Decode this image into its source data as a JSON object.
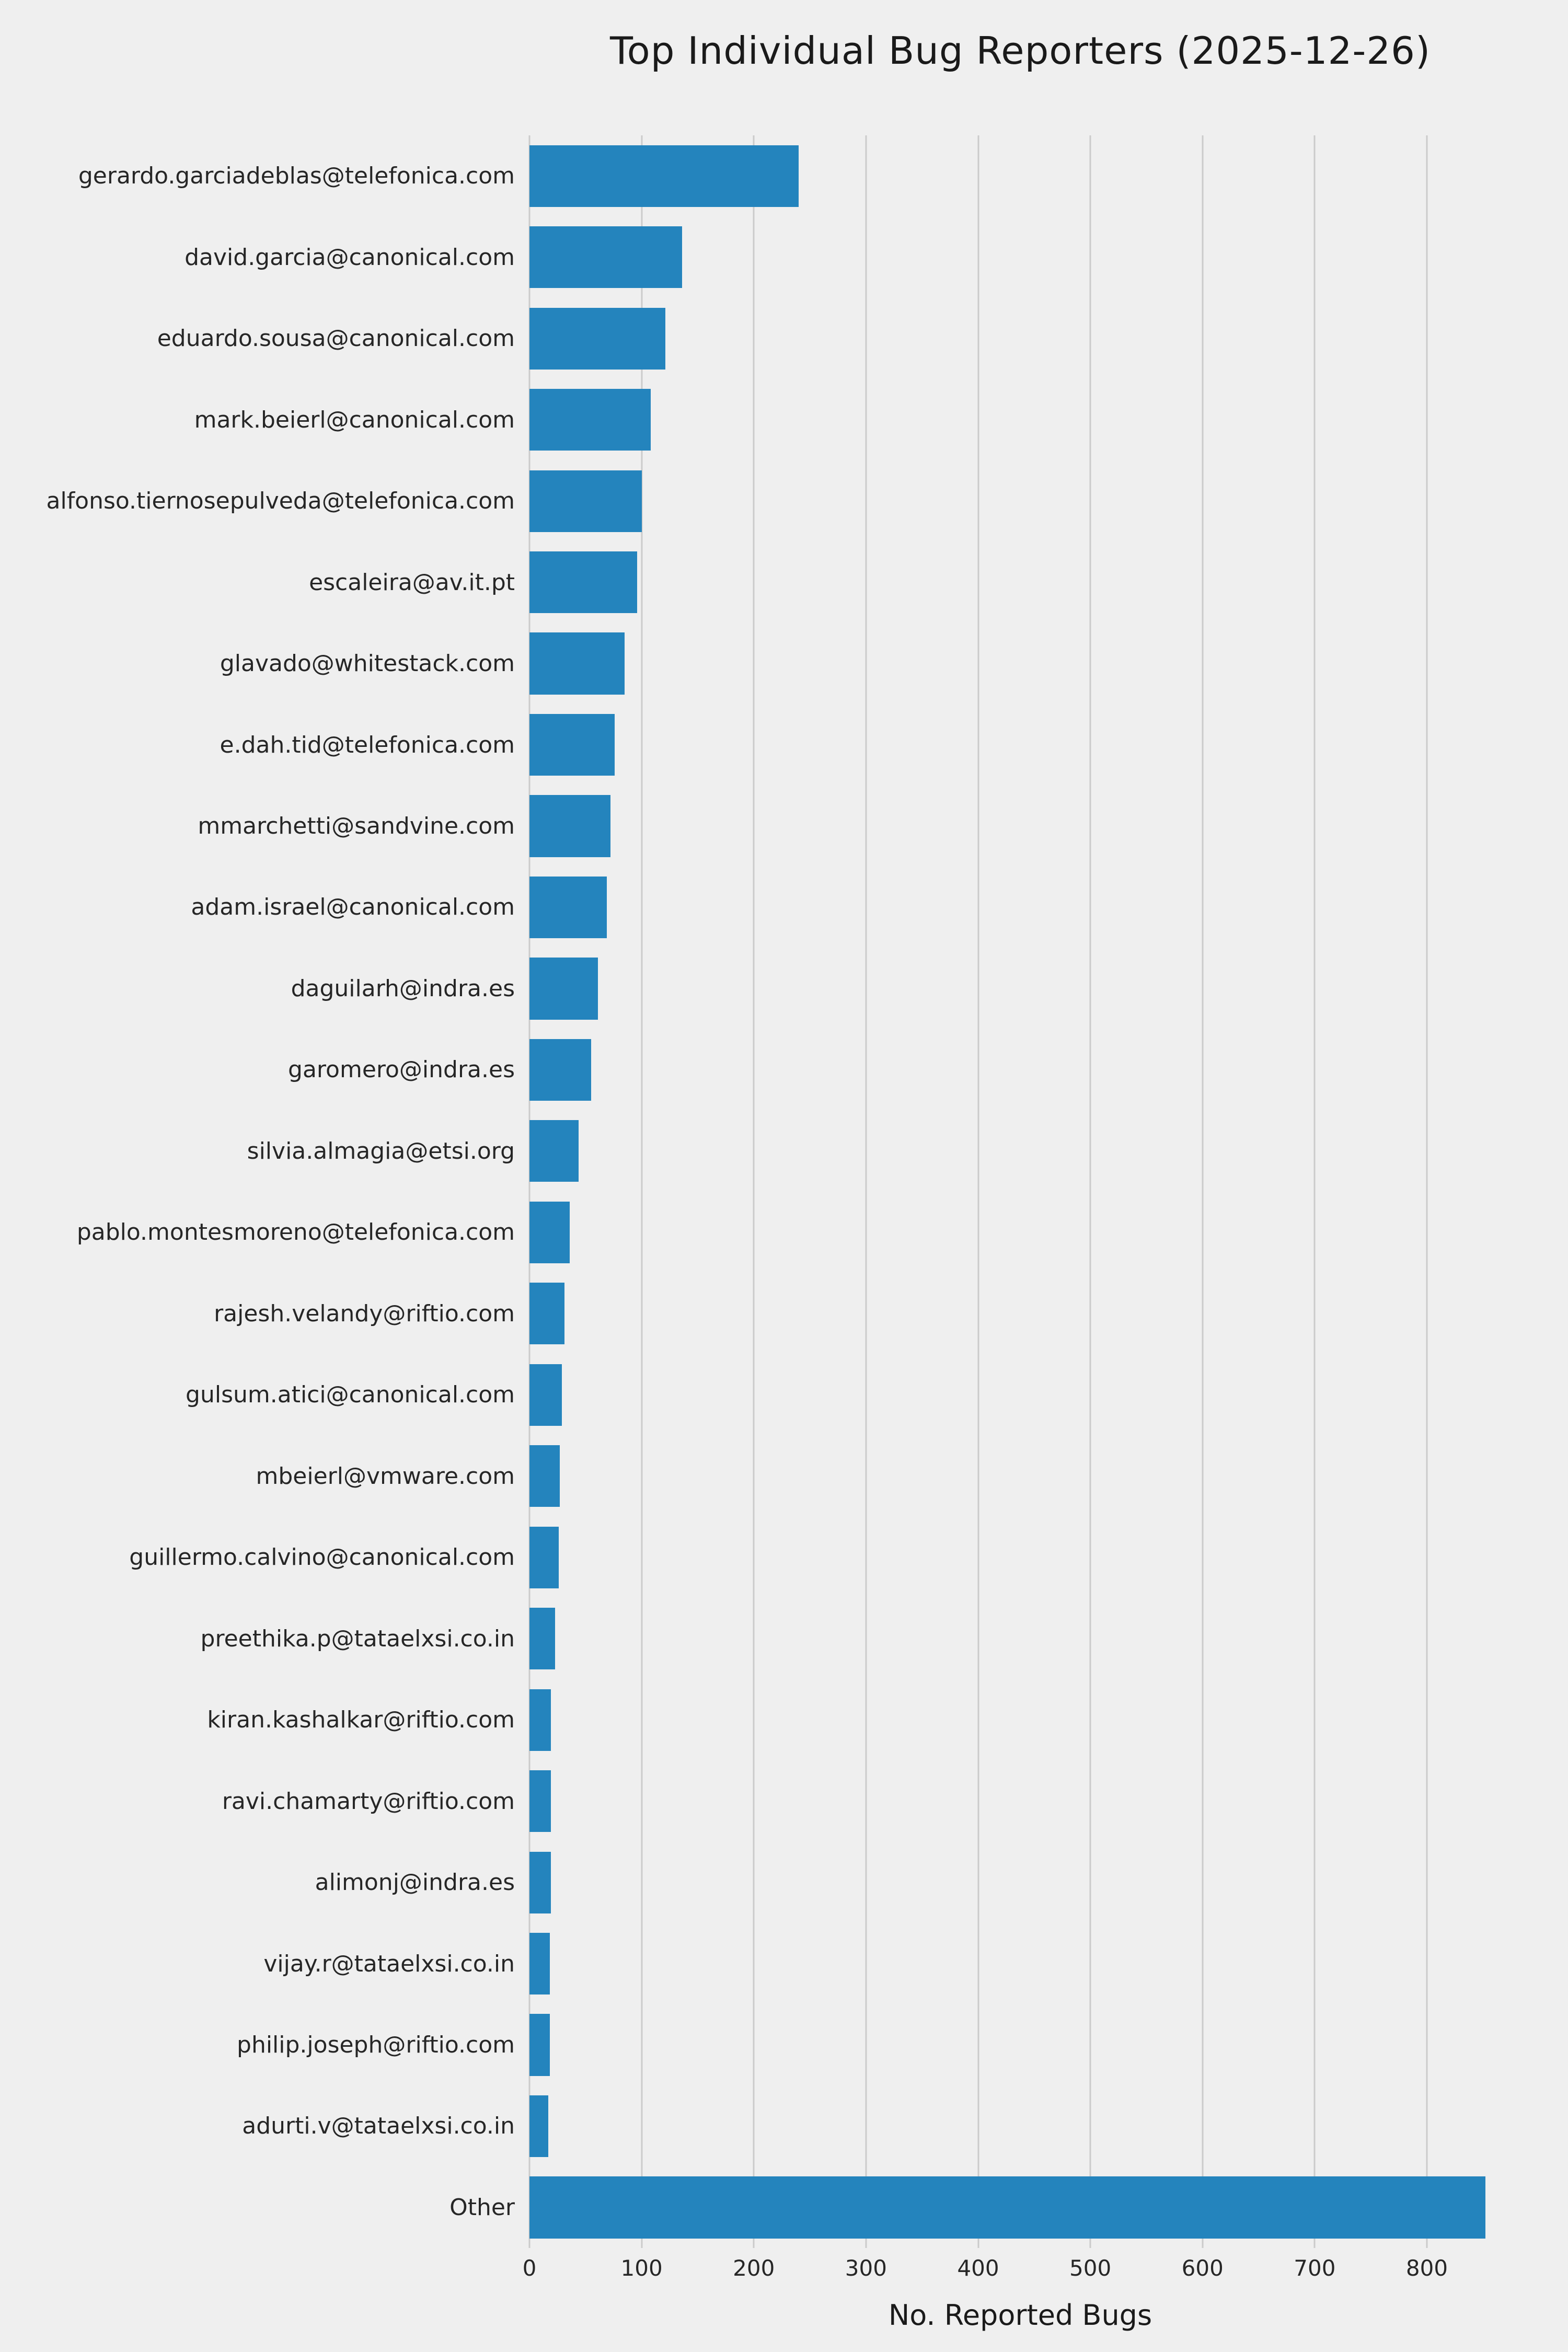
{
  "title": "Top Individual Bug Reporters (2025-12-26)",
  "colors": {
    "background": "#efefef",
    "gridline": "#cbcbcb",
    "text": "#262626",
    "bar": "#2484bd"
  },
  "chart_data": {
    "type": "bar",
    "orientation": "horizontal",
    "title": "Top Individual Bug Reporters (2025-12-26)",
    "xlabel": "No. Reported Bugs",
    "ylabel": "",
    "xlim": [
      0,
      875
    ],
    "x_ticks": [
      0,
      100,
      200,
      300,
      400,
      500,
      600,
      700,
      800
    ],
    "grid": true,
    "legend": false,
    "bar_color": "#2484bd",
    "categories": [
      "gerardo.garciadeblas@telefonica.com",
      "david.garcia@canonical.com",
      "eduardo.sousa@canonical.com",
      "mark.beierl@canonical.com",
      "alfonso.tiernosepulveda@telefonica.com",
      "escaleira@av.it.pt",
      "glavado@whitestack.com",
      "e.dah.tid@telefonica.com",
      "mmarchetti@sandvine.com",
      "adam.israel@canonical.com",
      "daguilarh@indra.es",
      "garomero@indra.es",
      "silvia.almagia@etsi.org",
      "pablo.montesmoreno@telefonica.com",
      "rajesh.velandy@riftio.com",
      "gulsum.atici@canonical.com",
      "mbeierl@vmware.com",
      "guillermo.calvino@canonical.com",
      "preethika.p@tataelxsi.co.in",
      "kiran.kashalkar@riftio.com",
      "ravi.chamarty@riftio.com",
      "alimonj@indra.es",
      "vijay.r@tataelxsi.co.in",
      "philip.joseph@riftio.com",
      "adurti.v@tataelxsi.co.in",
      "Other"
    ],
    "values": [
      240,
      136,
      121,
      108,
      100,
      96,
      85,
      76,
      72,
      69,
      61,
      55,
      44,
      36,
      31,
      29,
      27,
      26,
      23,
      19,
      19,
      19,
      18,
      18,
      17,
      852
    ]
  }
}
